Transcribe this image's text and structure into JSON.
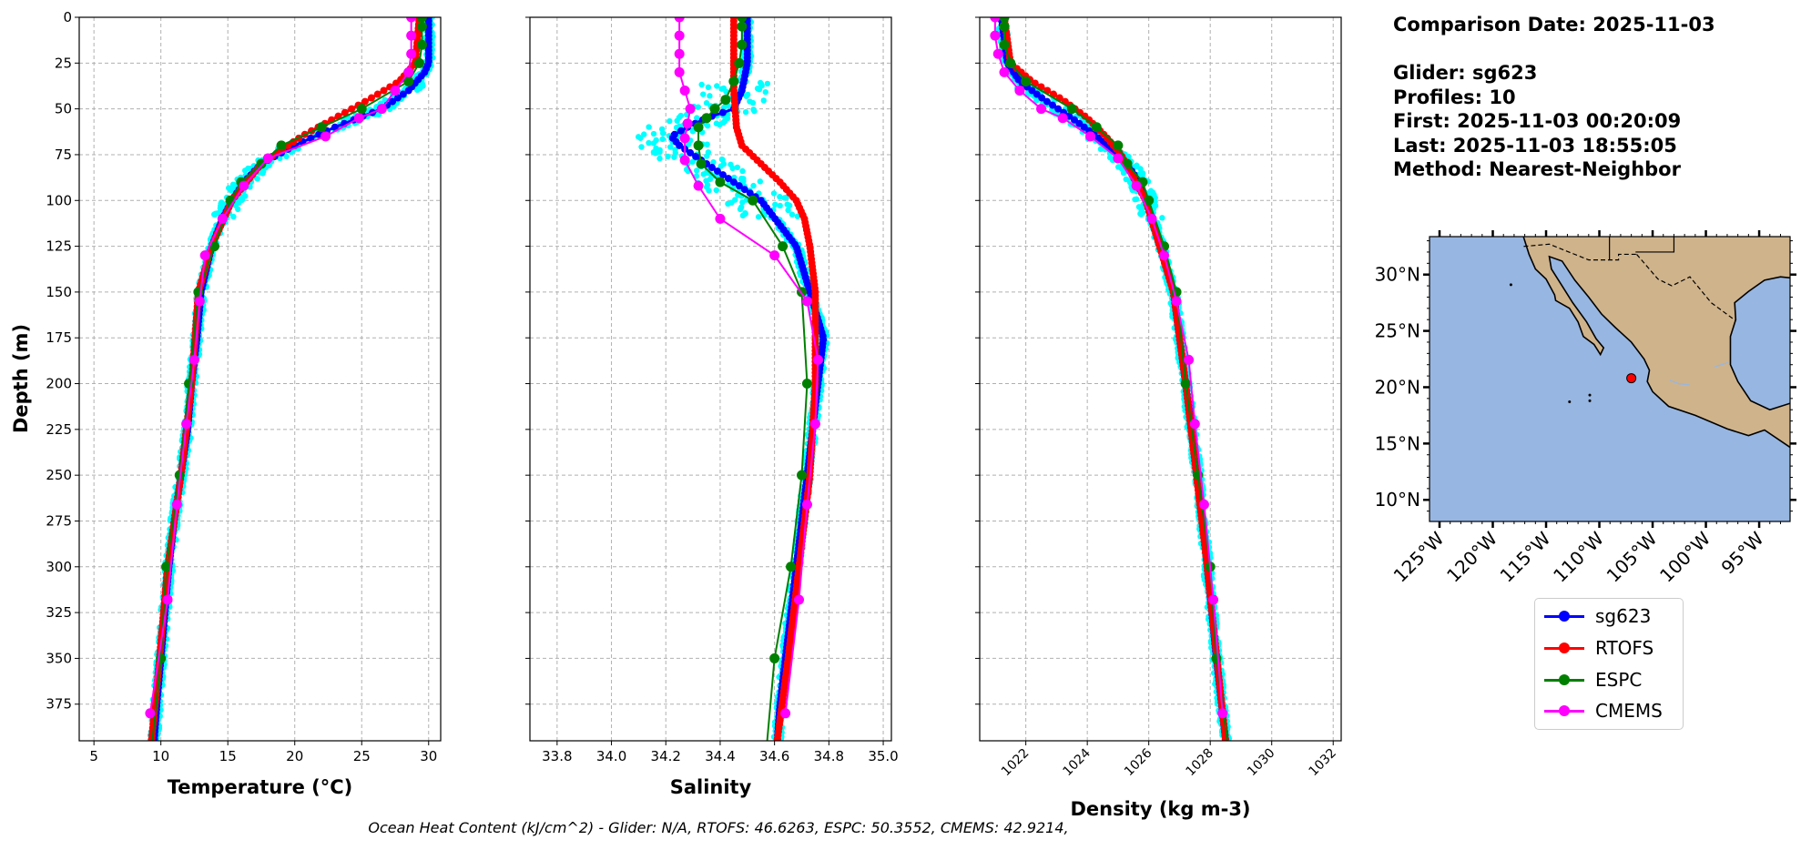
{
  "info": {
    "comparison_date": "Comparison Date: 2025-11-03",
    "glider": "Glider: sg623",
    "profiles": "Profiles: 10",
    "first": "First: 2025-11-03 00:20:09",
    "last": "Last: 2025-11-03 18:55:05",
    "method": "Method: Nearest-Neighbor"
  },
  "footer": "Ocean Heat Content (kJ/cm^2) - Glider: N/A,  RTOFS: 46.6263,  ESPC: 50.3552,  CMEMS: 42.9214,",
  "legend": [
    {
      "label": "sg623",
      "color": "#0000ff"
    },
    {
      "label": "RTOFS",
      "color": "#ff0000"
    },
    {
      "label": "ESPC",
      "color": "#008000"
    },
    {
      "label": "CMEMS",
      "color": "#ff00ff"
    }
  ],
  "colors": {
    "glider_all": "#00ffff",
    "grid": "#b0b0b0",
    "ocean": "#97b6e1",
    "land": "#cfb38b",
    "river": "#97b6e1",
    "marker": "#ff0000"
  },
  "chart_data": [
    {
      "type": "line",
      "xlabel": "Temperature (°C)",
      "ylabel": "Depth (m)",
      "xlim": [
        3.9,
        30.9
      ],
      "ylim": [
        0,
        395
      ],
      "y_inverted": true,
      "grid": true,
      "xticks": [
        5,
        10,
        15,
        20,
        25,
        30
      ],
      "yticks": [
        0,
        25,
        50,
        75,
        100,
        125,
        150,
        175,
        200,
        225,
        250,
        275,
        300,
        325,
        350,
        375
      ],
      "series": [
        {
          "name": "sg623",
          "depth": [
            0,
            25,
            30,
            40,
            50,
            60,
            70,
            80,
            90,
            100,
            110,
            125,
            150,
            175,
            200,
            225,
            250,
            275,
            300,
            325,
            350,
            375,
            395
          ],
          "values": [
            30.0,
            30.0,
            29.7,
            28.5,
            26.5,
            23.0,
            20.0,
            17.5,
            16.2,
            15.3,
            14.6,
            13.8,
            13.0,
            12.7,
            12.3,
            12.0,
            11.5,
            11.0,
            10.6,
            10.3,
            10.0,
            9.7,
            9.5
          ]
        },
        {
          "name": "RTOFS",
          "depth": [
            0,
            25,
            35,
            45,
            55,
            65,
            80,
            100,
            125,
            150,
            200,
            250,
            300,
            350,
            395
          ],
          "values": [
            29.3,
            29.0,
            27.8,
            25.5,
            23.0,
            20.5,
            17.5,
            15.3,
            13.8,
            12.8,
            12.3,
            11.5,
            10.5,
            9.9,
            9.3
          ]
        },
        {
          "name": "ESPC",
          "depth": [
            0,
            5,
            15,
            25,
            35,
            50,
            60,
            70,
            80,
            90,
            100,
            125,
            150,
            200,
            250,
            300,
            350,
            400
          ],
          "values": [
            29.5,
            29.5,
            29.5,
            29.3,
            28.5,
            25.0,
            22.0,
            19.0,
            17.5,
            16.0,
            15.2,
            14.0,
            12.8,
            12.1,
            11.4,
            10.4,
            10.0,
            9.3
          ]
        },
        {
          "name": "CMEMS",
          "depth": [
            0,
            10,
            20,
            30,
            40,
            50,
            55,
            65,
            77,
            92,
            110,
            130,
            155,
            187,
            222,
            266,
            318,
            380
          ],
          "values": [
            28.7,
            28.7,
            28.7,
            28.5,
            27.5,
            26.5,
            24.8,
            22.3,
            18.0,
            16.2,
            14.6,
            13.3,
            12.9,
            12.5,
            11.9,
            11.2,
            10.5,
            9.2
          ]
        }
      ]
    },
    {
      "type": "line",
      "xlabel": "Salinity",
      "xlim": [
        33.7,
        35.03
      ],
      "ylim": [
        0,
        395
      ],
      "y_inverted": true,
      "grid": true,
      "xticks": [
        33.8,
        34.0,
        34.2,
        34.4,
        34.6,
        34.8,
        35.0
      ],
      "yticks": [
        0,
        25,
        50,
        75,
        100,
        125,
        150,
        175,
        200,
        225,
        250,
        275,
        300,
        325,
        350,
        375
      ],
      "series": [
        {
          "name": "sg623",
          "depth": [
            0,
            25,
            40,
            50,
            55,
            60,
            65,
            70,
            75,
            85,
            100,
            125,
            150,
            175,
            200,
            225,
            250,
            275,
            300,
            325,
            350,
            375,
            395
          ],
          "values": [
            34.5,
            34.5,
            34.48,
            34.45,
            34.35,
            34.28,
            34.22,
            34.25,
            34.3,
            34.4,
            34.55,
            34.68,
            34.73,
            34.78,
            34.76,
            34.74,
            34.72,
            34.7,
            34.68,
            34.66,
            34.64,
            34.62,
            34.61
          ]
        },
        {
          "name": "RTOFS",
          "depth": [
            0,
            40,
            60,
            70,
            80,
            90,
            100,
            110,
            125,
            150,
            175,
            200,
            250,
            300,
            350,
            395
          ],
          "values": [
            34.45,
            34.45,
            34.46,
            34.48,
            34.55,
            34.62,
            34.68,
            34.71,
            34.73,
            34.75,
            34.75,
            34.75,
            34.73,
            34.69,
            34.65,
            34.61
          ]
        },
        {
          "name": "ESPC",
          "depth": [
            0,
            5,
            15,
            25,
            35,
            45,
            50,
            55,
            60,
            70,
            80,
            90,
            100,
            125,
            150,
            200,
            250,
            300,
            350,
            400
          ],
          "values": [
            34.48,
            34.48,
            34.48,
            34.47,
            34.45,
            34.42,
            34.38,
            34.35,
            34.32,
            34.32,
            34.33,
            34.4,
            34.52,
            34.63,
            34.7,
            34.72,
            34.7,
            34.66,
            34.6,
            34.57
          ]
        },
        {
          "name": "CMEMS",
          "depth": [
            0,
            10,
            20,
            30,
            40,
            50,
            58,
            66,
            78,
            92,
            110,
            130,
            155,
            187,
            222,
            266,
            318,
            380
          ],
          "values": [
            34.25,
            34.25,
            34.25,
            34.25,
            34.27,
            34.29,
            34.28,
            34.27,
            34.27,
            34.32,
            34.4,
            34.6,
            34.72,
            34.76,
            34.75,
            34.72,
            34.69,
            34.64
          ]
        }
      ]
    },
    {
      "type": "line",
      "xlabel": "Density (kg m-3)",
      "xlim": [
        1020.5,
        1032.26
      ],
      "ylim": [
        0,
        395
      ],
      "y_inverted": true,
      "grid": true,
      "xticks": [
        1022,
        1024,
        1026,
        1028,
        1030,
        1032
      ],
      "yticks": [
        0,
        25,
        50,
        75,
        100,
        125,
        150,
        175,
        200,
        225,
        250,
        275,
        300,
        325,
        350,
        375
      ],
      "series": [
        {
          "name": "sg623",
          "depth": [
            0,
            25,
            35,
            45,
            55,
            65,
            75,
            85,
            100,
            125,
            150,
            200,
            250,
            300,
            350,
            395
          ],
          "values": [
            1021.2,
            1021.4,
            1021.8,
            1022.6,
            1023.5,
            1024.3,
            1025.0,
            1025.5,
            1025.9,
            1026.4,
            1026.8,
            1027.2,
            1027.6,
            1027.9,
            1028.2,
            1028.5
          ]
        },
        {
          "name": "RTOFS",
          "depth": [
            0,
            25,
            35,
            45,
            55,
            65,
            75,
            100,
            150,
            200,
            300,
            395
          ],
          "values": [
            1021.3,
            1021.5,
            1022.2,
            1023.2,
            1024.0,
            1024.6,
            1025.1,
            1025.9,
            1026.8,
            1027.2,
            1027.9,
            1028.5
          ]
        },
        {
          "name": "ESPC",
          "depth": [
            0,
            5,
            15,
            25,
            35,
            50,
            60,
            70,
            80,
            90,
            100,
            125,
            150,
            200,
            250,
            300,
            350,
            400
          ],
          "values": [
            1021.3,
            1021.3,
            1021.3,
            1021.5,
            1022.0,
            1023.5,
            1024.3,
            1025.0,
            1025.3,
            1025.8,
            1026.0,
            1026.5,
            1026.9,
            1027.2,
            1027.6,
            1028.0,
            1028.2,
            1028.6
          ]
        },
        {
          "name": "CMEMS",
          "depth": [
            0,
            10,
            20,
            30,
            40,
            50,
            55,
            65,
            77,
            92,
            110,
            130,
            155,
            187,
            222,
            266,
            318,
            380
          ],
          "values": [
            1021.0,
            1021.0,
            1021.1,
            1021.3,
            1021.8,
            1022.5,
            1023.2,
            1024.1,
            1025.0,
            1025.6,
            1026.1,
            1026.5,
            1026.9,
            1027.3,
            1027.5,
            1027.8,
            1028.1,
            1028.4
          ]
        }
      ]
    },
    {
      "type": "map",
      "lon_range": [
        -125.94,
        -92.1
      ],
      "lat_range": [
        8.08,
        33.37
      ],
      "lon_ticks": [
        -125,
        -120,
        -115,
        -110,
        -105,
        -100,
        -95
      ],
      "lon_tick_labels": [
        "125°W",
        "120°W",
        "115°W",
        "110°W",
        "105°W",
        "100°W",
        "95°W"
      ],
      "lat_ticks": [
        10,
        15,
        20,
        25,
        30
      ],
      "lat_tick_labels": [
        "10°N",
        "15°N",
        "20°N",
        "25°N",
        "30°N"
      ],
      "glider_position": {
        "lon": -107.0,
        "lat": 20.8
      }
    }
  ]
}
